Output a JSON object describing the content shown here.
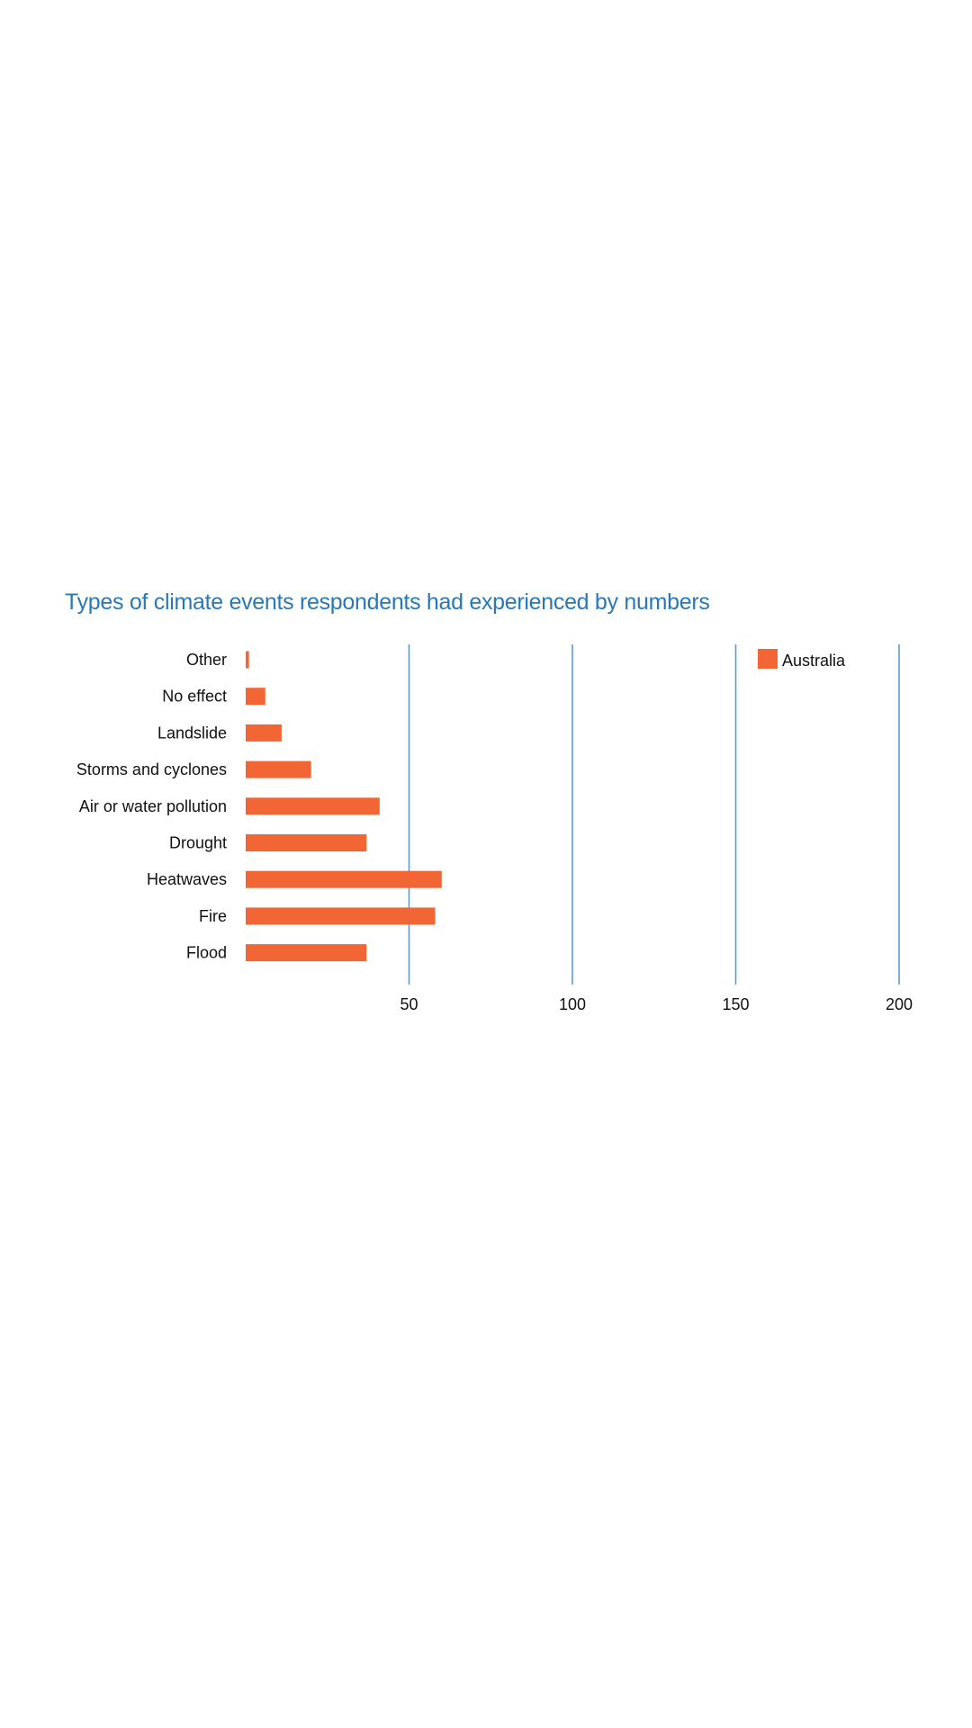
{
  "chart_data": {
    "type": "bar",
    "orientation": "horizontal",
    "title": "Types of climate events respondents had experienced by numbers",
    "categories": [
      "Other",
      "No effect",
      "Landslide",
      "Storms and cyclones",
      "Air or water pollution",
      "Drought",
      "Heatwaves",
      "Fire",
      "Flood"
    ],
    "series": [
      {
        "name": "Australia",
        "values": [
          1,
          6,
          11,
          20,
          41,
          37,
          60,
          58,
          37
        ],
        "color": "#f26636"
      }
    ],
    "x_ticks": [
      50,
      100,
      150,
      200
    ],
    "xlim": [
      0,
      200
    ],
    "grid": true,
    "grid_color": "#5b9bd5",
    "title_color": "#2878b8",
    "legend_position": "top-right"
  }
}
